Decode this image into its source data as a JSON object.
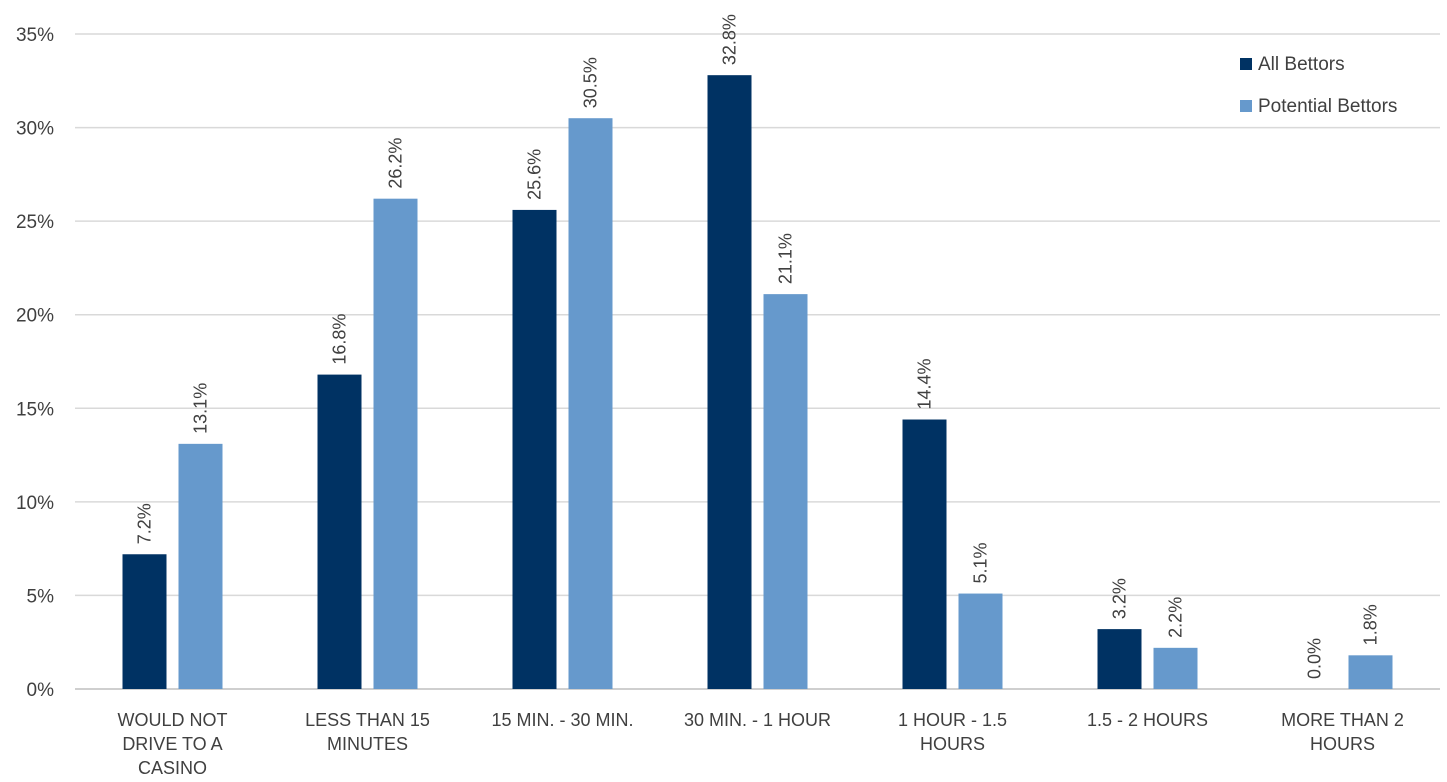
{
  "chart_data": {
    "type": "bar",
    "title": "",
    "xlabel": "",
    "ylabel": "",
    "ylim": [
      0,
      35
    ],
    "yticks": [
      "0%",
      "5%",
      "10%",
      "15%",
      "20%",
      "25%",
      "30%",
      "35%"
    ],
    "grid": true,
    "legend_position": "top-right",
    "categories": [
      [
        "WOULD NOT",
        "DRIVE TO A",
        "CASINO"
      ],
      [
        "LESS THAN 15",
        "MINUTES"
      ],
      [
        "15 MIN. - 30 MIN."
      ],
      [
        "30 MIN. - 1 HOUR"
      ],
      [
        "1 HOUR - 1.5",
        "HOURS"
      ],
      [
        "1.5 - 2 HOURS"
      ],
      [
        "MORE THAN 2",
        "HOURS"
      ]
    ],
    "series": [
      {
        "name": "All Bettors",
        "color": "#003263",
        "values": [
          7.2,
          16.8,
          25.6,
          32.8,
          14.4,
          3.2,
          0.0
        ],
        "labels": [
          "7.2%",
          "16.8%",
          "25.6%",
          "32.8%",
          "14.4%",
          "3.2%",
          "0.0%"
        ]
      },
      {
        "name": "Potential Bettors",
        "color": "#6699cc",
        "values": [
          13.1,
          26.2,
          30.5,
          21.1,
          5.1,
          2.2,
          1.8
        ],
        "labels": [
          "13.1%",
          "26.2%",
          "30.5%",
          "21.1%",
          "5.1%",
          "2.2%",
          "1.8%"
        ]
      }
    ]
  }
}
